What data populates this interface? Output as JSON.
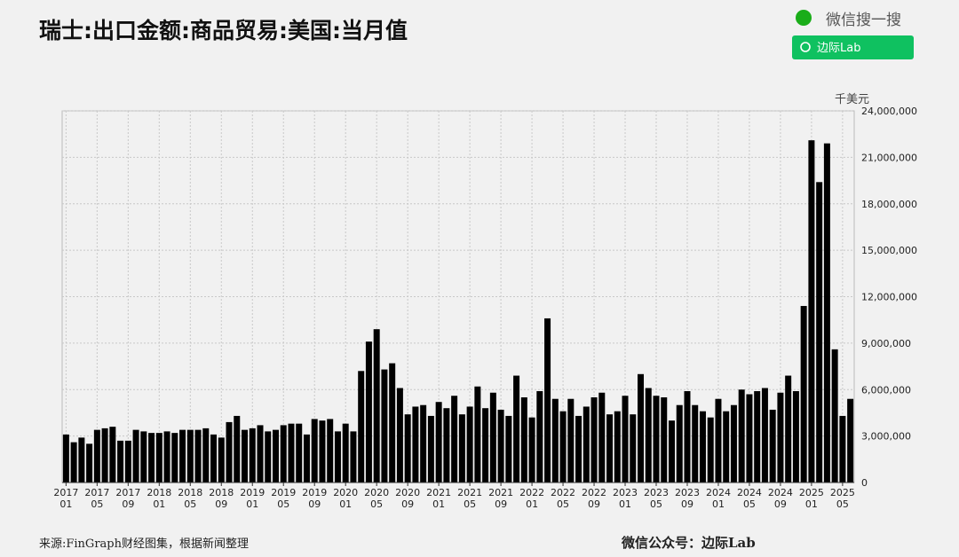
{
  "chart_data": {
    "type": "bar",
    "title": "瑞士:出口金额:商品贸易:美国:当月值",
    "unit": "千美元",
    "source": "来源:FinGraph财经图集，根据新闻整理",
    "footer": "微信公众号：边际Lab",
    "search_label": "微信搜一搜",
    "search_button": "边际Lab",
    "color": "#000000",
    "grid": true,
    "ylim": [
      0,
      24000000
    ],
    "yticks": [
      0,
      {
        "value": 3000000,
        "label": "3,000,000"
      },
      {
        "value": 6000000,
        "label": "6,000,000"
      },
      {
        "value": 9000000,
        "label": "9,000,000"
      },
      {
        "value": 12000000,
        "label": "12,000,000"
      },
      {
        "value": 15000000,
        "label": "15,000,000"
      },
      {
        "value": 18000000,
        "label": "18,000,000"
      },
      {
        "value": 21000000,
        "label": "21,000,000"
      },
      {
        "value": 24000000,
        "label": "24,000,000"
      }
    ],
    "categories": [
      "2017 01",
      null,
      null,
      null,
      "2017 05",
      null,
      null,
      null,
      "2017 09",
      null,
      null,
      null,
      "2018 01",
      null,
      null,
      null,
      "2018 05",
      null,
      null,
      null,
      "2018 09",
      null,
      null,
      null,
      "2019 01",
      null,
      null,
      null,
      "2019 05",
      null,
      null,
      null,
      "2019 09",
      null,
      null,
      null,
      "2020 01",
      null,
      null,
      null,
      "2020 05",
      null,
      null,
      null,
      "2020 09",
      null,
      null,
      null,
      "2021 01",
      null,
      null,
      null,
      "2021 05",
      null,
      null,
      null,
      "2021 09",
      null,
      null,
      null,
      "2022 01",
      null,
      null,
      null,
      "2022 05",
      null,
      null,
      null,
      "2022 09",
      null,
      null,
      null,
      "2023 01",
      null,
      null,
      null,
      "2023 05",
      null,
      null,
      null,
      "2023 09",
      null,
      null,
      null,
      "2024 01",
      null,
      null,
      null,
      "2024 05",
      null,
      null,
      null,
      "2024 09",
      null,
      null,
      null,
      "2025 01",
      null,
      null,
      null,
      "2025 05",
      null
    ],
    "values": [
      3100000,
      2600000,
      2900000,
      2500000,
      3400000,
      3500000,
      3600000,
      2700000,
      2700000,
      3400000,
      3300000,
      3200000,
      3200000,
      3300000,
      3200000,
      3400000,
      3400000,
      3400000,
      3500000,
      3100000,
      2900000,
      3900000,
      4300000,
      3400000,
      3500000,
      3700000,
      3300000,
      3400000,
      3700000,
      3800000,
      3800000,
      3100000,
      4100000,
      4000000,
      4100000,
      3300000,
      3800000,
      3300000,
      7200000,
      9100000,
      9900000,
      7300000,
      7700000,
      6100000,
      4400000,
      4900000,
      5000000,
      4300000,
      5200000,
      4800000,
      5600000,
      4400000,
      4900000,
      6200000,
      4800000,
      5800000,
      4700000,
      4300000,
      6900000,
      5500000,
      4200000,
      5900000,
      10600000,
      5400000,
      4600000,
      5400000,
      4300000,
      4900000,
      5500000,
      5800000,
      4400000,
      4600000,
      5600000,
      4400000,
      7000000,
      6100000,
      5600000,
      5500000,
      4000000,
      5000000,
      5900000,
      5000000,
      4600000,
      4200000,
      5400000,
      4600000,
      5000000,
      6000000,
      5700000,
      5900000,
      6100000,
      4700000,
      5800000,
      6900000,
      5900000,
      11400000,
      22100000,
      19400000,
      21900000,
      8600000,
      4300000,
      5400000
    ]
  }
}
